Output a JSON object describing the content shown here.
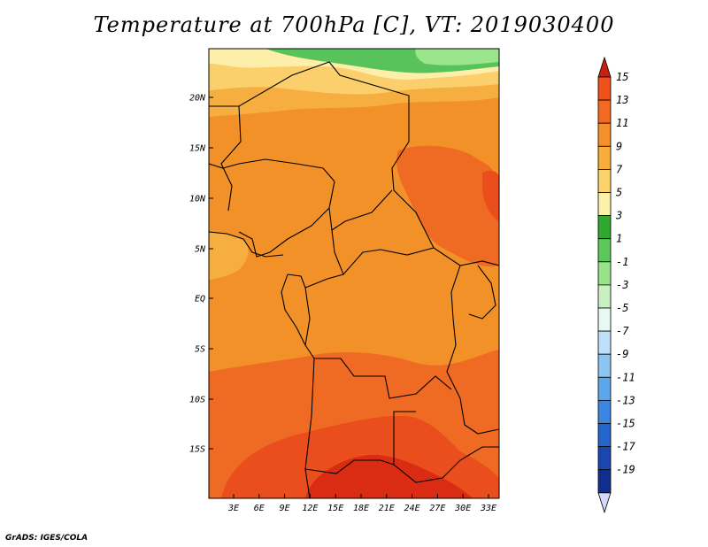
{
  "title": "Temperature at 700hPa [C], VT: 2019030400",
  "credit": "GrADS: IGES/COLA",
  "lat_labels": [
    "20N",
    "15N",
    "10N",
    "5N",
    "EQ",
    "5S",
    "10S",
    "15S"
  ],
  "lon_labels": [
    "3E",
    "6E",
    "9E",
    "12E",
    "15E",
    "18E",
    "21E",
    "24E",
    "27E",
    "30E",
    "33E"
  ],
  "colorbar": {
    "labels": [
      "15",
      "13",
      "11",
      "9",
      "7",
      "5",
      "3",
      "1",
      "-1",
      "-3",
      "-5",
      "-7",
      "-9",
      "-11",
      "-13",
      "-15",
      "-17",
      "-19"
    ],
    "colors": [
      "#e03a10",
      "#f0501a",
      "#f26a22",
      "#f6902a",
      "#f8ac3c",
      "#fbd26c",
      "#fdf0a8",
      "#2fa830",
      "#5cc85c",
      "#96e38a",
      "#c8f0c0",
      "#e8f8f2",
      "#bfe0f8",
      "#8cc4f2",
      "#5ea6ec",
      "#3a86e0",
      "#2466cc",
      "#1a46b0",
      "#0f2e8e",
      "#081660"
    ]
  },
  "legend_colors": {
    "cap_top": "#c82010",
    "cap_bottom": "#d8d8f8"
  },
  "field_colors": {
    "dark_red": "#d92c12",
    "red": "#e94e1c",
    "red_orange": "#ef6a22",
    "orange": "#f29128",
    "light_orange": "#f7ae40",
    "yellow": "#fbd06c",
    "pale_yellow": "#fdefaa",
    "green": "#57c35a",
    "light_green": "#9be58c"
  }
}
